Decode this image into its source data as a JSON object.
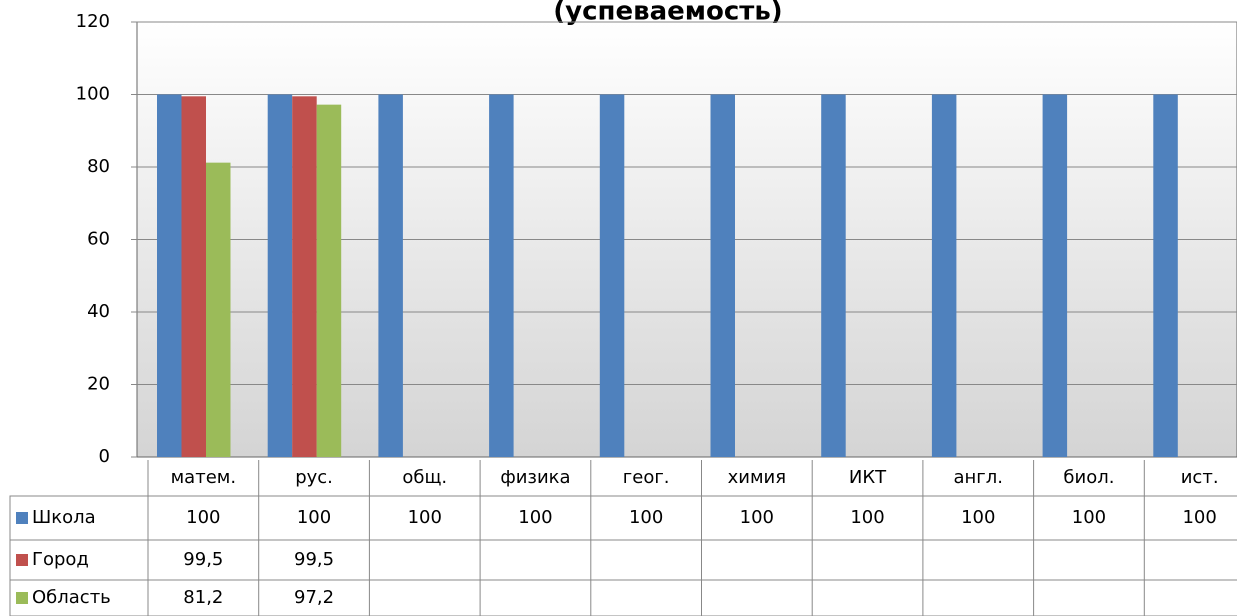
{
  "chart_data": {
    "type": "bar",
    "title": "(успеваемость)",
    "categories": [
      "матем.",
      "рус.",
      "общ.",
      "физика",
      "геог.",
      "химия",
      "ИКТ",
      "англ.",
      "биол.",
      "ист."
    ],
    "series": [
      {
        "name": "Школа",
        "color": "#4f81bd",
        "values": [
          100,
          100,
          100,
          100,
          100,
          100,
          100,
          100,
          100,
          100
        ]
      },
      {
        "name": "Город",
        "color": "#c0504d",
        "values": [
          99.5,
          99.5,
          null,
          null,
          null,
          null,
          null,
          null,
          null,
          null
        ],
        "value_labels": [
          "99,5",
          "99,5",
          null,
          null,
          null,
          null,
          null,
          null,
          null,
          null
        ]
      },
      {
        "name": "Область",
        "color": "#9bbb59",
        "values": [
          81.2,
          97.2,
          null,
          null,
          null,
          null,
          null,
          null,
          null,
          null
        ],
        "value_labels": [
          "81,2",
          "97,2",
          null,
          null,
          null,
          null,
          null,
          null,
          null,
          null
        ]
      }
    ],
    "ylim": [
      0,
      120
    ],
    "yticks": [
      0,
      20,
      40,
      60,
      80,
      100,
      120
    ],
    "grid": true
  }
}
